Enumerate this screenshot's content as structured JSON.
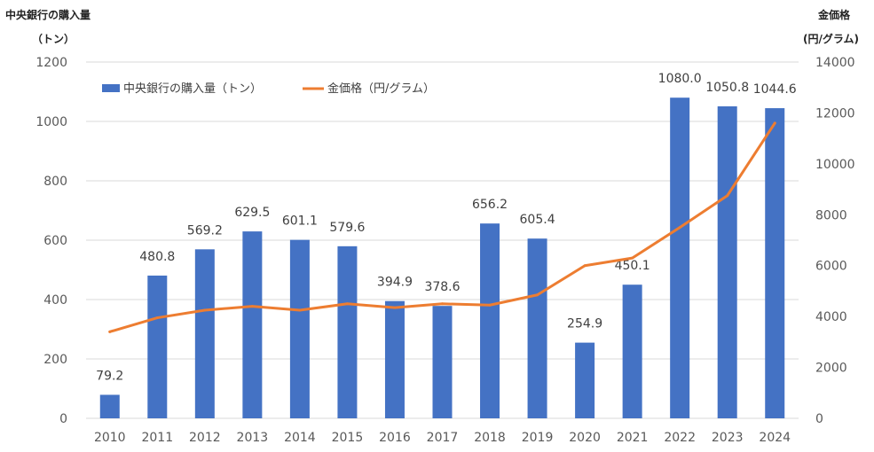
{
  "chart_data": {
    "type": "bar",
    "categories": [
      "2010",
      "2011",
      "2012",
      "2013",
      "2014",
      "2015",
      "2016",
      "2017",
      "2018",
      "2019",
      "2020",
      "2021",
      "2022",
      "2023",
      "2024"
    ],
    "series": [
      {
        "name": "中央銀行の購入量（トン）",
        "type": "bar",
        "axis": "left",
        "color": "#4472C4",
        "values": [
          79.2,
          480.8,
          569.2,
          629.5,
          601.1,
          579.6,
          394.9,
          378.6,
          656.2,
          605.4,
          254.9,
          450.1,
          1080.0,
          1050.8,
          1044.6
        ],
        "labels": [
          "79.2",
          "480.8",
          "569.2",
          "629.5",
          "601.1",
          "579.6",
          "394.9",
          "378.6",
          "656.2",
          "605.4",
          "254.9",
          "450.1",
          "1080.0",
          "1050.8",
          "1044.6"
        ]
      },
      {
        "name": "金価格（円/グラム）",
        "type": "line",
        "axis": "right",
        "color": "#ED7D31",
        "values": [
          3400,
          3950,
          4250,
          4400,
          4250,
          4500,
          4350,
          4500,
          4450,
          4850,
          6000,
          6300,
          7500,
          8750,
          11600
        ]
      }
    ],
    "left_axis": {
      "title_line1": "中央銀行の購入量",
      "title_line2": "（トン）",
      "ylim": [
        0,
        1200
      ],
      "ticks": [
        "0",
        "200",
        "400",
        "600",
        "800",
        "1000",
        "1200"
      ]
    },
    "right_axis": {
      "title_line1": "金価格",
      "title_line2": "(円/グラム)",
      "ylim": [
        0,
        14000
      ],
      "ticks": [
        "0",
        "2000",
        "4000",
        "6000",
        "8000",
        "10000",
        "12000",
        "14000"
      ]
    },
    "grid": true,
    "legend_position": "top-left"
  }
}
